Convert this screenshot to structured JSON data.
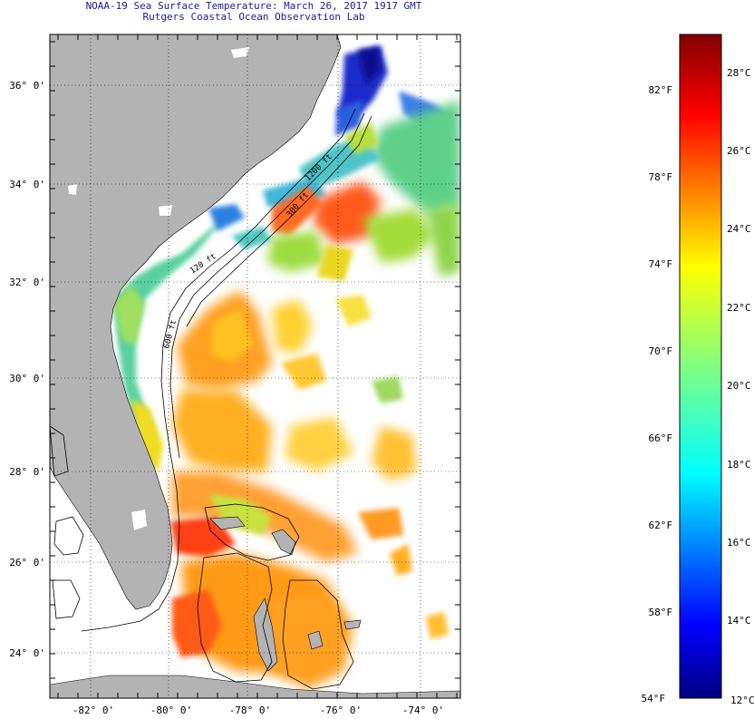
{
  "header": {
    "title_line1": "NOAA-19 Sea Surface Temperature:  March 26, 2017 1917 GMT",
    "title_line2": "Rutgers Coastal Ocean Observation Lab"
  },
  "map": {
    "lat_labels": [
      "36° 0'",
      "34° 0'",
      "32° 0'",
      "30° 0'",
      "28° 0'",
      "26° 0'",
      "24° 0'"
    ],
    "lon_labels": [
      "-82° 0'",
      "-80° 0'",
      "-78° 0'",
      "-76° 0'",
      "-74° 0'"
    ],
    "contour_labels": [
      "120 ft",
      "300 ft",
      "600 ft",
      "1200 ft"
    ],
    "colors": {
      "land": "#b3b3b3",
      "cloud": "#ffffff",
      "frame": "#000000"
    }
  },
  "colorbar": {
    "fahrenheit_labels": [
      "82°F",
      "78°F",
      "74°F",
      "70°F",
      "66°F",
      "62°F",
      "58°F",
      "54°F"
    ],
    "celsius_labels": [
      "28°C",
      "26°C",
      "24°C",
      "22°C",
      "20°C",
      "18°C",
      "16°C",
      "14°C",
      "12°C"
    ]
  }
}
